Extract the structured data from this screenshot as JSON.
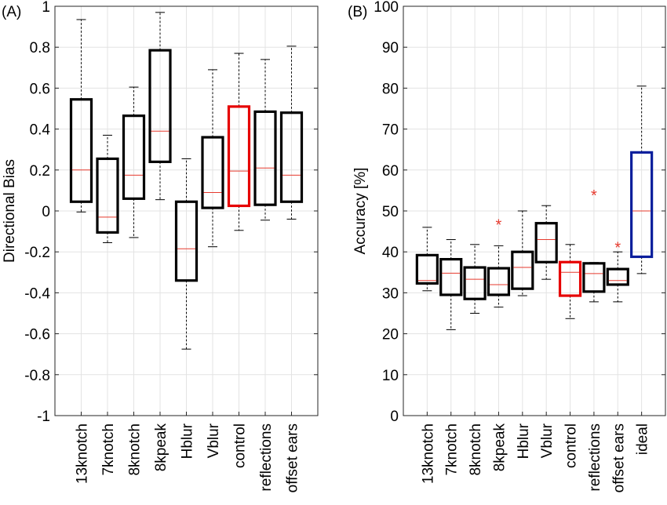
{
  "chart_data": [
    {
      "type": "box",
      "panel_label": "(A)",
      "ylabel": "Directional Bias",
      "ylim": [
        -1,
        1
      ],
      "yticks": [
        -1,
        -0.8,
        -0.6,
        -0.4,
        -0.2,
        0,
        0.2,
        0.4,
        0.6,
        0.8,
        1
      ],
      "ytick_labels": [
        "-1",
        "-0.8",
        "-0.6",
        "-0.4",
        "-0.2",
        "0",
        "0.2",
        "0.4",
        "0.6",
        "0.8",
        "1"
      ],
      "grid": true,
      "categories": [
        "13knotch",
        "7knotch",
        "8knotch",
        "8kpeak",
        "Hblur",
        "Vblur",
        "control",
        "reflections",
        "offset ears"
      ],
      "boxes": [
        {
          "q1": 0.045,
          "median": 0.2,
          "q3": 0.545,
          "whisker_low": -0.005,
          "whisker_high": 0.935,
          "color": "#000000",
          "outliers": []
        },
        {
          "q1": -0.105,
          "median": -0.03,
          "q3": 0.255,
          "whisker_low": -0.155,
          "whisker_high": 0.37,
          "color": "#000000",
          "outliers": []
        },
        {
          "q1": 0.06,
          "median": 0.175,
          "q3": 0.465,
          "whisker_low": -0.13,
          "whisker_high": 0.605,
          "color": "#000000",
          "outliers": []
        },
        {
          "q1": 0.24,
          "median": 0.39,
          "q3": 0.785,
          "whisker_low": 0.055,
          "whisker_high": 0.97,
          "color": "#000000",
          "outliers": []
        },
        {
          "q1": -0.34,
          "median": -0.185,
          "q3": 0.045,
          "whisker_low": -0.675,
          "whisker_high": 0.255,
          "color": "#000000",
          "outliers": []
        },
        {
          "q1": 0.015,
          "median": 0.09,
          "q3": 0.36,
          "whisker_low": -0.175,
          "whisker_high": 0.69,
          "color": "#000000",
          "outliers": []
        },
        {
          "q1": 0.025,
          "median": 0.195,
          "q3": 0.51,
          "whisker_low": -0.095,
          "whisker_high": 0.77,
          "color": "#e60000",
          "outliers": []
        },
        {
          "q1": 0.03,
          "median": 0.21,
          "q3": 0.485,
          "whisker_low": -0.045,
          "whisker_high": 0.74,
          "color": "#000000",
          "outliers": []
        },
        {
          "q1": 0.045,
          "median": 0.175,
          "q3": 0.48,
          "whisker_low": -0.04,
          "whisker_high": 0.805,
          "color": "#000000",
          "outliers": []
        }
      ]
    },
    {
      "type": "box",
      "panel_label": "(B)",
      "ylabel": "Accuracy [%]",
      "ylim": [
        0,
        100
      ],
      "yticks": [
        0,
        10,
        20,
        30,
        40,
        50,
        60,
        70,
        80,
        90,
        100
      ],
      "ytick_labels": [
        "0",
        "10",
        "20",
        "30",
        "40",
        "50",
        "60",
        "70",
        "80",
        "90",
        "100"
      ],
      "grid": true,
      "categories": [
        "13knotch",
        "7knotch",
        "8knotch",
        "8kpeak",
        "Hblur",
        "Vblur",
        "control",
        "reflections",
        "offset ears",
        "ideal"
      ],
      "boxes": [
        {
          "q1": 32.3,
          "median": 33.0,
          "q3": 39.2,
          "whisker_low": 30.5,
          "whisker_high": 46.0,
          "color": "#000000",
          "outliers": []
        },
        {
          "q1": 29.5,
          "median": 34.8,
          "q3": 38.2,
          "whisker_low": 21.0,
          "whisker_high": 43.0,
          "color": "#000000",
          "outliers": []
        },
        {
          "q1": 28.5,
          "median": 33.3,
          "q3": 36.2,
          "whisker_low": 25.0,
          "whisker_high": 41.8,
          "color": "#000000",
          "outliers": []
        },
        {
          "q1": 29.5,
          "median": 32.0,
          "q3": 36.0,
          "whisker_low": 26.5,
          "whisker_high": 41.5,
          "color": "#000000",
          "outliers": [
            47.0
          ]
        },
        {
          "q1": 31.0,
          "median": 36.2,
          "q3": 40.0,
          "whisker_low": 29.3,
          "whisker_high": 50.0,
          "color": "#000000",
          "outliers": []
        },
        {
          "q1": 37.5,
          "median": 43.0,
          "q3": 47.0,
          "whisker_low": 33.3,
          "whisker_high": 51.3,
          "color": "#000000",
          "outliers": []
        },
        {
          "q1": 29.3,
          "median": 35.0,
          "q3": 37.5,
          "whisker_low": 23.7,
          "whisker_high": 41.8,
          "color": "#e60000",
          "outliers": []
        },
        {
          "q1": 30.3,
          "median": 34.7,
          "q3": 37.2,
          "whisker_low": 27.8,
          "whisker_high": 37.4,
          "color": "#000000",
          "outliers": [
            54.2
          ]
        },
        {
          "q1": 32.0,
          "median": 33.0,
          "q3": 35.8,
          "whisker_low": 27.8,
          "whisker_high": 40.0,
          "color": "#000000",
          "outliers": [
            41.5
          ]
        },
        {
          "q1": 38.8,
          "median": 50.0,
          "q3": 64.3,
          "whisker_low": 34.7,
          "whisker_high": 80.5,
          "color": "#0a1e9c",
          "outliers": []
        }
      ]
    }
  ]
}
